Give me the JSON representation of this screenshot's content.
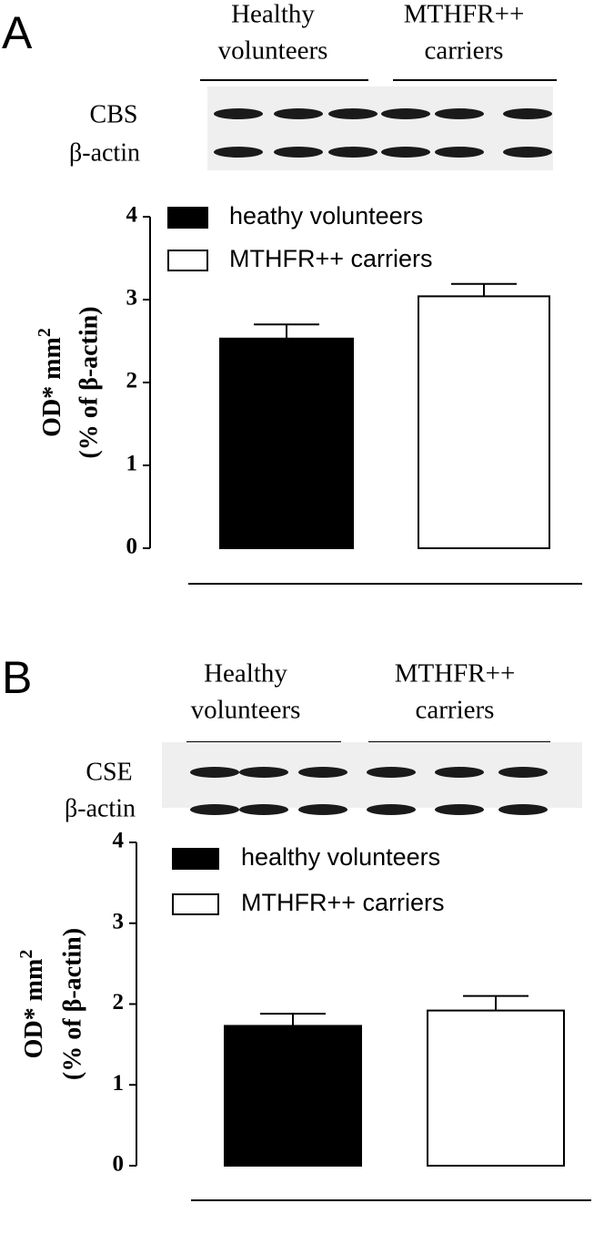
{
  "chart_data": [
    {
      "type": "bar",
      "panel": "A",
      "groups": [
        [
          "Healthy",
          "volunteers"
        ],
        [
          "MTHFR++",
          "carriers"
        ]
      ],
      "blot_labels": [
        "CBS",
        "β-actin"
      ],
      "ylabel": "OD* mm",
      "ylabel_sup": "2",
      "ylabel_2": "(% of β-actin)",
      "series": [
        {
          "name": "heathy volunteers",
          "color": "#000000",
          "values": [
            2.53
          ],
          "errors": [
            0.17
          ]
        },
        {
          "name": "MTHFR++ carriers",
          "color": "#ffffff",
          "values": [
            3.04
          ],
          "errors": [
            0.15
          ]
        }
      ],
      "ylim": [
        0,
        4
      ],
      "yticks": [
        0,
        1,
        2,
        3,
        4
      ]
    },
    {
      "type": "bar",
      "panel": "B",
      "groups": [
        [
          "Healthy",
          "volunteers"
        ],
        [
          "MTHFR++",
          "carriers"
        ]
      ],
      "blot_labels": [
        "CSE",
        "β-actin"
      ],
      "ylabel": "OD* mm",
      "ylabel_sup": "2",
      "ylabel_2": "(% of β-actin)",
      "series": [
        {
          "name": "healthy volunteers",
          "color": "#000000",
          "values": [
            1.73
          ],
          "errors": [
            0.15
          ]
        },
        {
          "name": "MTHFR++ carriers",
          "color": "#ffffff",
          "values": [
            1.92
          ],
          "errors": [
            0.18
          ]
        }
      ],
      "ylim": [
        0,
        4
      ],
      "yticks": [
        0,
        1,
        2,
        3,
        4
      ]
    }
  ]
}
